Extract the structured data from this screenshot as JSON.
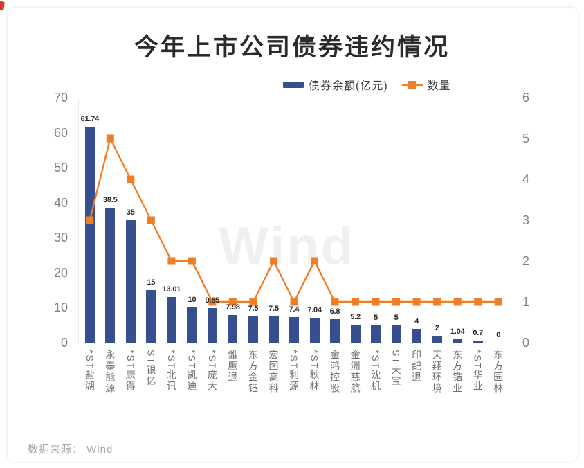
{
  "page": {
    "title": "今年上市公司债券违约情况",
    "watermark": "Wind",
    "source_note": "数据来源： Wind"
  },
  "colors": {
    "bar": "#36508F",
    "line": "#F07D28",
    "axis_line": "#ececef",
    "tick_text": "#7d8085"
  },
  "legend": {
    "items": [
      {
        "label": "债券余额(亿元)",
        "type": "bar",
        "color": "#36508F"
      },
      {
        "label": "数量",
        "type": "line",
        "color": "#F07D28"
      }
    ]
  },
  "chart_data": {
    "type": "bar",
    "combo": "bar+line",
    "title": "今年上市公司债券违约情况",
    "categories": [
      "*ST盐湖",
      "永泰能源",
      "*ST康得",
      "ST银亿",
      "*ST北讯",
      "*ST凯迪",
      "*ST庞大",
      "雏鹰退",
      "东方金钰",
      "宏图高科",
      "*ST利源",
      "*ST秋林",
      "金鸿控股",
      "金洲慈航",
      "*ST沈机",
      "ST天宝",
      "印纪退",
      "天翔环境",
      "东方锆业",
      "*ST华业",
      "东方园林"
    ],
    "series": [
      {
        "name": "债券余额(亿元)",
        "type": "bar",
        "axis": "left",
        "color": "#36508F",
        "values": [
          61.74,
          38.5,
          35,
          15,
          13.01,
          10,
          9.85,
          7.98,
          7.5,
          7.5,
          7.4,
          7.04,
          6.8,
          5.2,
          5,
          5,
          4,
          2,
          1.04,
          0.7,
          0
        ],
        "labels": [
          "61.74",
          "38.5",
          "35",
          "15",
          "13.01",
          "10",
          "9.85",
          "7.98",
          "7.5",
          "7.5",
          "7.4",
          "7.04",
          "6.8",
          "5.2",
          "5",
          "5",
          "4",
          "2",
          "1.04",
          "0.7",
          "0"
        ]
      },
      {
        "name": "数量",
        "type": "line",
        "axis": "right",
        "color": "#F07D28",
        "values": [
          3,
          5,
          4,
          3,
          2,
          2,
          1,
          1,
          1,
          2,
          1,
          2,
          1,
          1,
          1,
          1,
          1,
          1,
          1,
          1,
          1
        ]
      }
    ],
    "left_axis": {
      "ticks": [
        0,
        10,
        20,
        30,
        40,
        50,
        60,
        70
      ],
      "range": [
        0,
        70
      ]
    },
    "right_axis": {
      "ticks": [
        0,
        1,
        2,
        3,
        4,
        5,
        6
      ],
      "range": [
        0,
        6
      ]
    },
    "grid": false,
    "legend_position": "top"
  }
}
